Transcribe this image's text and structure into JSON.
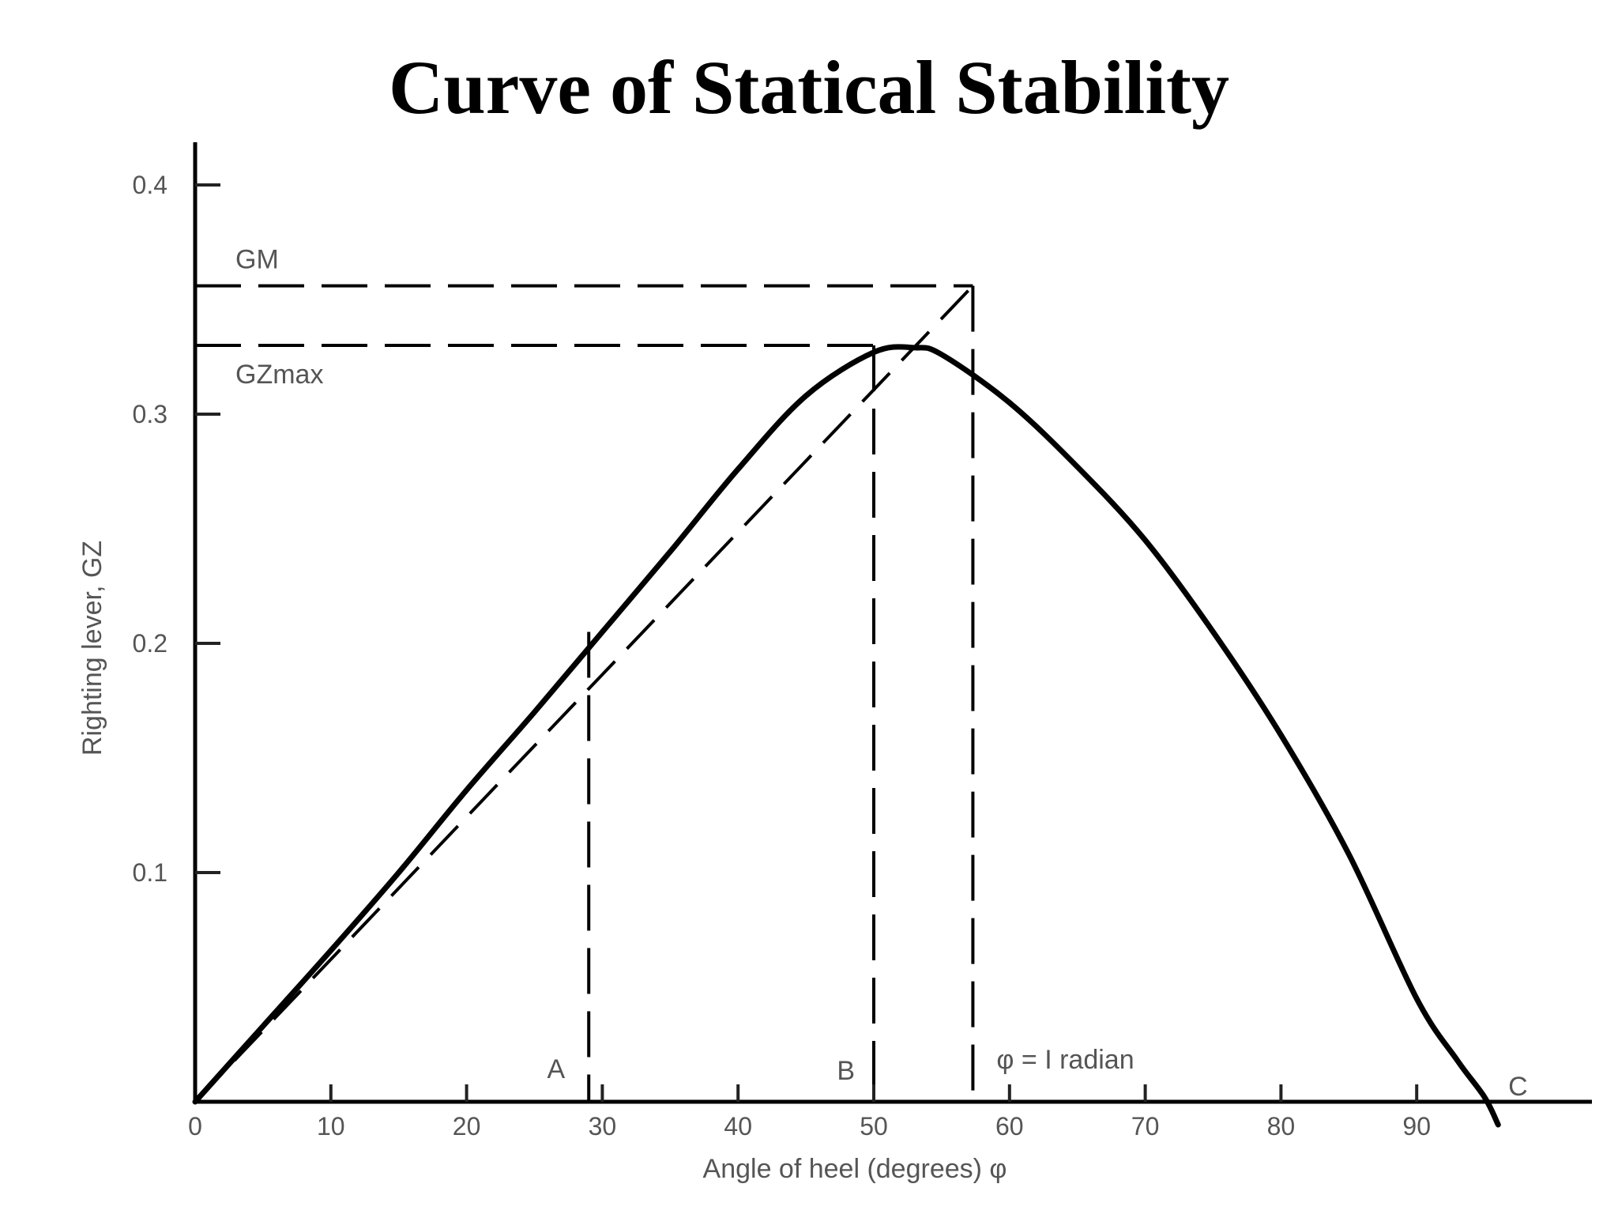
{
  "chart_data": {
    "type": "line",
    "title": "Curve of Statical Stability",
    "xlabel": "Angle of heel (degrees) φ",
    "ylabel": "Righting lever, GZ",
    "xlim": [
      0,
      100
    ],
    "ylim": [
      0,
      0.42
    ],
    "x_ticks": [
      0,
      10,
      20,
      30,
      40,
      50,
      60,
      70,
      80,
      90
    ],
    "y_ticks": [
      0.1,
      0.2,
      0.3,
      0.4
    ],
    "y_tick_labels": [
      "0.1",
      "0.2",
      "0.3",
      "0.4"
    ],
    "grid": false,
    "series": [
      {
        "style": "solid",
        "x": [
          0,
          5,
          10,
          15,
          20,
          25,
          30,
          35,
          40,
          45,
          50,
          53,
          55,
          60,
          65,
          70,
          75,
          80,
          85,
          90,
          93,
          95,
          96
        ],
        "y": [
          0,
          0.033,
          0.066,
          0.1,
          0.136,
          0.17,
          0.205,
          0.24,
          0.276,
          0.308,
          0.327,
          0.329,
          0.326,
          0.305,
          0.277,
          0.245,
          0.205,
          0.16,
          0.108,
          0.045,
          0.018,
          0.002,
          -0.01
        ]
      },
      {
        "style": "dashed",
        "x": [
          0,
          57.3
        ],
        "y": [
          0,
          0.356
        ]
      }
    ],
    "reference_lines": [
      {
        "label": "GM",
        "orientation": "horizontal",
        "value": 0.356,
        "to_x": 57.3
      },
      {
        "label": "GZmax",
        "orientation": "horizontal",
        "value": 0.33,
        "to_x": 50
      },
      {
        "label": "A",
        "orientation": "vertical",
        "value": 29,
        "to_y": 0.205
      },
      {
        "label": "B",
        "orientation": "vertical",
        "value": 50,
        "to_y": 0.33
      },
      {
        "label": "φ = I radian",
        "orientation": "vertical",
        "value": 57.3,
        "to_y": 0.356
      }
    ],
    "annotations": [
      {
        "label": "C",
        "x": 95,
        "y": 0
      }
    ]
  }
}
